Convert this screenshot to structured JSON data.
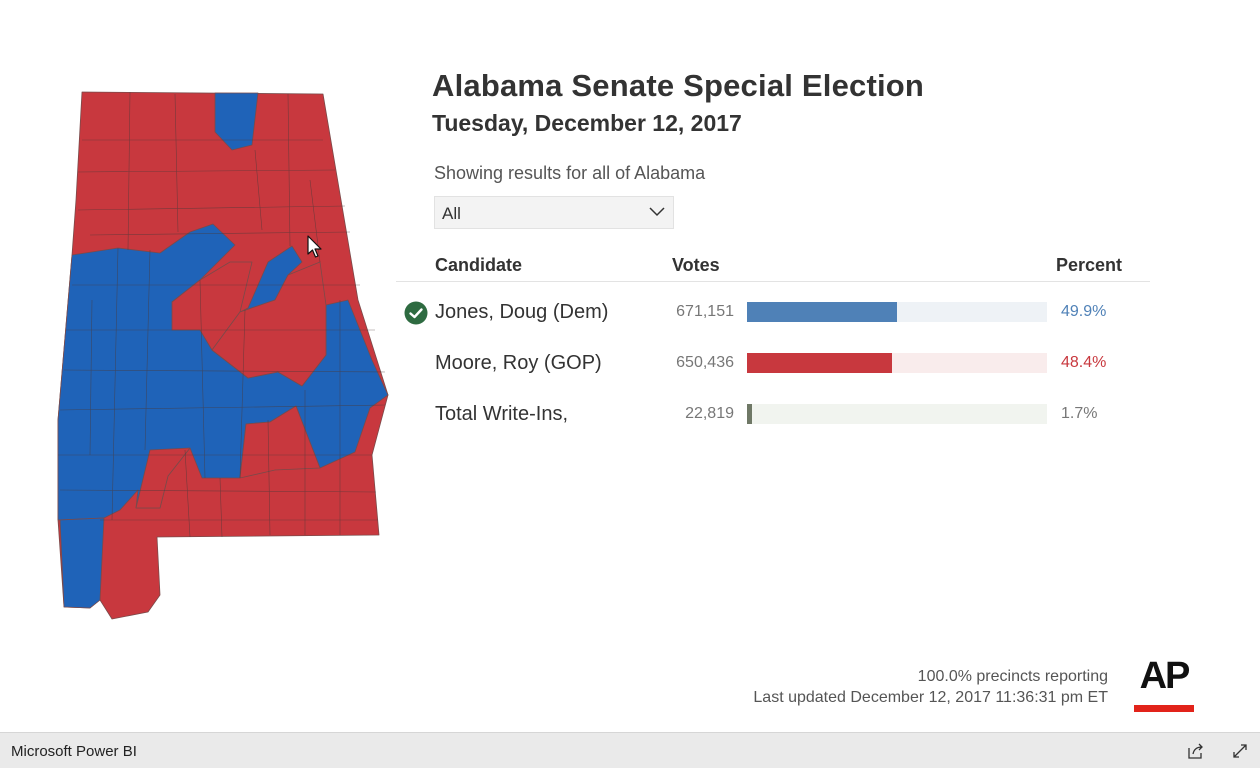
{
  "report": {
    "title": "Alabama Senate Special Election",
    "subtitle": "Tuesday, December 12, 2017",
    "filter_label": "Showing results for all of Alabama",
    "filter_value": "All"
  },
  "table": {
    "headers": {
      "candidate": "Candidate",
      "votes": "Votes",
      "percent": "Percent"
    },
    "rows": [
      {
        "name": "Jones, Doug (Dem)",
        "votes": "671,151",
        "percent": "49.9%",
        "share": 0.499,
        "winner": true,
        "bar_color": "#4f81b7",
        "track_color": "#eef2f6",
        "pct_color": "#4f81b7"
      },
      {
        "name": "Moore, Roy (GOP)",
        "votes": "650,436",
        "percent": "48.4%",
        "share": 0.484,
        "winner": false,
        "bar_color": "#c8383e",
        "track_color": "#f9ecec",
        "pct_color": "#c8383e"
      },
      {
        "name": "Total Write-Ins,",
        "votes": "22,819",
        "percent": "1.7%",
        "share": 0.017,
        "winner": false,
        "bar_color": "#6f7866",
        "track_color": "#f1f4ef",
        "pct_color": "#777777"
      }
    ]
  },
  "footer": {
    "precincts": "100.0% precincts reporting",
    "updated": "Last updated December 12, 2017 11:36:31 pm ET",
    "logo_text": "AP"
  },
  "statusbar": {
    "brand": "Microsoft Power BI",
    "icons": [
      "share-icon",
      "expand-icon"
    ]
  },
  "colors": {
    "dem": "#1f63b8",
    "gop": "#c8383e",
    "check": "#2e6b41",
    "ap_red": "#e2231a"
  }
}
